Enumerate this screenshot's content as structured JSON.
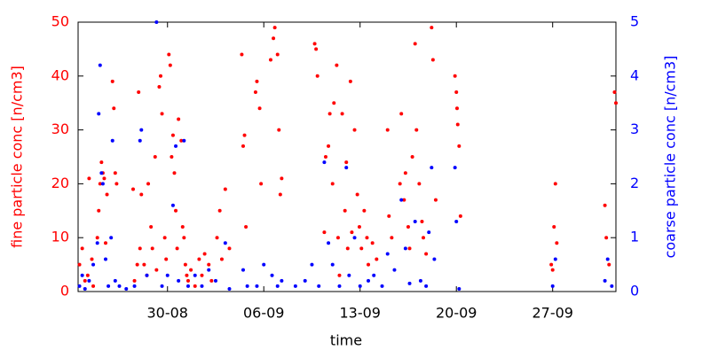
{
  "chart_data": {
    "type": "scatter",
    "xlabel": "time",
    "ylabel": "fine particle conc [n/cm3]",
    "y2label": "coarse particle conc [n/cm3]",
    "xlim": [
      23.5,
      62.6
    ],
    "xticks": [
      {
        "value": 30,
        "label": "30-08"
      },
      {
        "value": 37,
        "label": "06-09"
      },
      {
        "value": 44,
        "label": "13-09"
      },
      {
        "value": 51,
        "label": "20-09"
      },
      {
        "value": 58,
        "label": "27-09"
      }
    ],
    "ylim": [
      0,
      50
    ],
    "yticks": [
      0,
      10,
      20,
      30,
      40,
      50
    ],
    "y2lim": [
      0,
      5
    ],
    "y2ticks": [
      0,
      1,
      2,
      3,
      4,
      5
    ],
    "ycolor": "#ff0000",
    "y2color": "#0000ff",
    "series": [
      {
        "color": "#ff0000",
        "x": [
          23.6,
          23.8,
          24.0,
          24.2,
          24.3,
          24.5,
          24.6,
          24.9,
          25.0,
          25.1,
          25.2,
          25.3,
          25.4,
          25.5,
          25.6,
          26.0,
          26.1,
          26.2,
          26.3,
          27.5,
          27.6,
          27.8,
          27.9,
          28.0,
          28.1,
          28.3,
          28.5,
          28.6,
          28.8,
          28.9,
          29.1,
          29.2,
          29.4,
          29.5,
          29.6,
          29.8,
          29.9,
          30.1,
          30.2,
          30.3,
          30.4,
          30.5,
          30.6,
          30.7,
          30.8,
          31.0,
          31.1,
          31.2,
          31.3,
          31.4,
          31.5,
          31.7,
          32.0,
          32.3,
          32.5,
          32.7,
          33.0,
          33.2,
          33.6,
          33.8,
          33.95,
          34.2,
          34.5,
          35.4,
          35.5,
          35.6,
          35.7,
          36.4,
          36.5,
          36.7,
          36.8,
          37.5,
          37.7,
          37.8,
          38.0,
          38.1,
          38.2,
          38.3,
          40.7,
          40.8,
          40.9,
          41.4,
          41.5,
          41.7,
          41.8,
          42.0,
          42.1,
          42.3,
          42.4,
          42.5,
          42.7,
          42.9,
          43.0,
          43.1,
          43.3,
          43.4,
          43.6,
          43.8,
          43.95,
          44.1,
          44.3,
          44.5,
          44.6,
          44.9,
          45.2,
          46.0,
          46.1,
          46.3,
          46.9,
          47.0,
          47.2,
          47.3,
          47.5,
          47.6,
          47.8,
          48.0,
          48.1,
          48.3,
          48.5,
          48.6,
          48.8,
          49.2,
          49.3,
          49.5,
          50.9,
          51.0,
          51.05,
          51.1,
          51.2,
          51.3,
          57.9,
          58.0,
          58.1,
          58.2,
          58.3,
          61.8,
          61.9,
          62.1,
          62.5,
          62.6
        ],
        "values": [
          5,
          8,
          2,
          3,
          21,
          6,
          1,
          10,
          15,
          20,
          24,
          22,
          21,
          9,
          18,
          39,
          34,
          22,
          20,
          19,
          2,
          5,
          37,
          8,
          18,
          5,
          3,
          20,
          12,
          8,
          25,
          4,
          38,
          40,
          33,
          10,
          6,
          44,
          42,
          25,
          29,
          22,
          15,
          8,
          32,
          28,
          12,
          10,
          5,
          3,
          2,
          4,
          1,
          6,
          3,
          7,
          5,
          2,
          10,
          15,
          6,
          19,
          8,
          44,
          27,
          29,
          12,
          37,
          39,
          34,
          20,
          43,
          47,
          49,
          44,
          30,
          18,
          21,
          46,
          45,
          40,
          11,
          25,
          27,
          33,
          20,
          35,
          42,
          10,
          3,
          33,
          15,
          24,
          8,
          39,
          11,
          30,
          18,
          12,
          8,
          15,
          10,
          5,
          9,
          6,
          30,
          14,
          10,
          20,
          33,
          17,
          22,
          12,
          8,
          25,
          46,
          30,
          20,
          13,
          10,
          7,
          49,
          43,
          17,
          40,
          37,
          34,
          31,
          27,
          14,
          5,
          4,
          12,
          20,
          9,
          16,
          10,
          5,
          37,
          35
        ]
      },
      {
        "color": "#0000ff",
        "axis": "y2",
        "x": [
          23.6,
          23.8,
          24.0,
          24.3,
          24.6,
          24.9,
          25.0,
          25.1,
          25.2,
          25.3,
          25.5,
          25.7,
          25.9,
          26.0,
          26.2,
          26.5,
          27.0,
          27.6,
          28.0,
          28.1,
          28.5,
          29.2,
          29.6,
          30.0,
          30.4,
          30.6,
          30.8,
          31.2,
          31.5,
          32.0,
          32.5,
          33.0,
          33.5,
          34.2,
          34.5,
          35.5,
          35.8,
          36.5,
          37.0,
          37.6,
          38.0,
          38.3,
          39.3,
          40.0,
          40.5,
          41.0,
          41.4,
          41.7,
          42.0,
          42.5,
          43.0,
          43.2,
          43.6,
          44.0,
          44.6,
          45.0,
          45.6,
          46.0,
          46.5,
          47.0,
          47.3,
          47.6,
          48.0,
          48.4,
          48.8,
          49.0,
          49.2,
          49.4,
          50.9,
          51.0,
          51.2,
          58.0,
          58.2,
          61.8,
          62.0,
          62.3
        ],
        "values": [
          0.1,
          0.3,
          0.05,
          0.2,
          0.5,
          0.9,
          3.3,
          4.2,
          2.2,
          2.0,
          0.6,
          0.1,
          1.0,
          2.8,
          0.2,
          0.1,
          0.05,
          0.1,
          2.8,
          3.0,
          0.3,
          5.0,
          0.1,
          0.3,
          1.6,
          2.7,
          0.2,
          2.8,
          0.1,
          0.3,
          0.1,
          0.4,
          0.2,
          0.9,
          0.05,
          0.4,
          0.1,
          0.1,
          0.5,
          0.3,
          0.1,
          0.2,
          0.1,
          0.2,
          0.5,
          0.1,
          2.4,
          0.9,
          0.5,
          0.1,
          2.3,
          0.3,
          1.0,
          0.1,
          0.2,
          0.3,
          0.1,
          0.7,
          0.4,
          1.7,
          0.8,
          0.15,
          1.3,
          0.2,
          0.1,
          1.1,
          2.3,
          0.6,
          2.3,
          1.3,
          0.05,
          0.1,
          0.6,
          0.2,
          0.6,
          0.1
        ]
      }
    ]
  }
}
